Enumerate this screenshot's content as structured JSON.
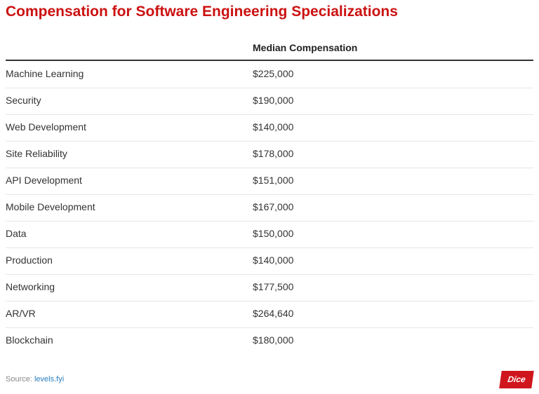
{
  "header": {
    "title": "Compensation for Software Engineering Specializations"
  },
  "table": {
    "column_header": "Median Compensation",
    "rows": [
      [
        "Machine Learning",
        "$225,000"
      ],
      [
        "Security",
        "$190,000"
      ],
      [
        "Web Development",
        "$140,000"
      ],
      [
        "Site Reliability",
        "$178,000"
      ],
      [
        "API Development",
        "$151,000"
      ],
      [
        "Mobile Development",
        "$167,000"
      ],
      [
        "Data",
        "$150,000"
      ],
      [
        "Production",
        "$140,000"
      ],
      [
        "Networking",
        "$177,500"
      ],
      [
        "AR/VR",
        "$264,640"
      ],
      [
        "Blockchain",
        "$180,000"
      ]
    ]
  },
  "footer": {
    "source_label": "Source:",
    "source_link": "levels.fyi",
    "logo": "Dice"
  }
}
